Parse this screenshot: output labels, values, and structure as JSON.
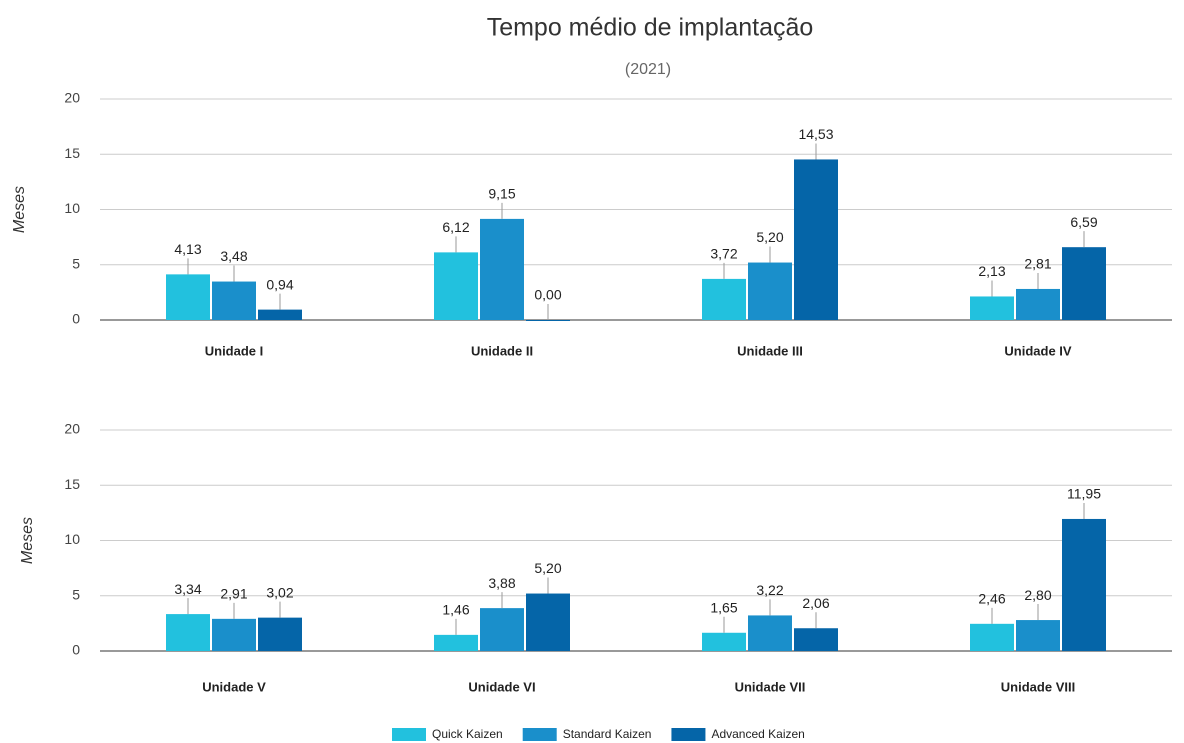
{
  "title": "Tempo médio de implantação",
  "subtitle": "(2021)",
  "chart_data": [
    {
      "type": "bar",
      "y_label": "Meses",
      "categories": [
        "Unidade I",
        "Unidade II",
        "Unidade III",
        "Unidade IV"
      ],
      "series": [
        {
          "name": "Quick Kaizen",
          "color": "#22c1de",
          "values": [
            4.13,
            6.12,
            3.72,
            2.13
          ],
          "value_labels": [
            "4,13",
            "6,12",
            "3,72",
            "2,13"
          ]
        },
        {
          "name": "Standard Kaizen",
          "color": "#1a8fcb",
          "values": [
            3.48,
            9.15,
            5.2,
            2.81
          ],
          "value_labels": [
            "3,48",
            "9,15",
            "5,20",
            "2,81"
          ]
        },
        {
          "name": "Advanced Kaizen",
          "color": "#0565a8",
          "values": [
            0.94,
            0.0,
            14.53,
            6.59
          ],
          "value_labels": [
            "0,94",
            "0,00",
            "14,53",
            "6,59"
          ]
        }
      ],
      "ylim": [
        0,
        20
      ],
      "yticks": [
        0,
        5,
        10,
        15,
        20
      ],
      "grid": true
    },
    {
      "type": "bar",
      "y_label": "Meses",
      "categories": [
        "Unidade V",
        "Unidade VI",
        "Unidade VII",
        "Unidade VIII"
      ],
      "series": [
        {
          "color": "#22c1de",
          "values": [
            3.34,
            1.46,
            1.65,
            2.46
          ],
          "value_labels": [
            "3,34",
            "1,46",
            "1,65",
            "2,46"
          ]
        },
        {
          "color": "#1a8fcb",
          "values": [
            2.91,
            3.88,
            3.22,
            2.8
          ],
          "value_labels": [
            "2,91",
            "3,88",
            "3,22",
            "2,80"
          ]
        },
        {
          "color": "#0565a8",
          "values": [
            3.02,
            5.2,
            2.06,
            11.95
          ],
          "value_labels": [
            "3,02",
            "5,20",
            "2,06",
            "11,95"
          ]
        }
      ],
      "ylim": [
        0,
        20
      ],
      "yticks": [
        0,
        5,
        10,
        15,
        20
      ],
      "grid": true
    }
  ]
}
